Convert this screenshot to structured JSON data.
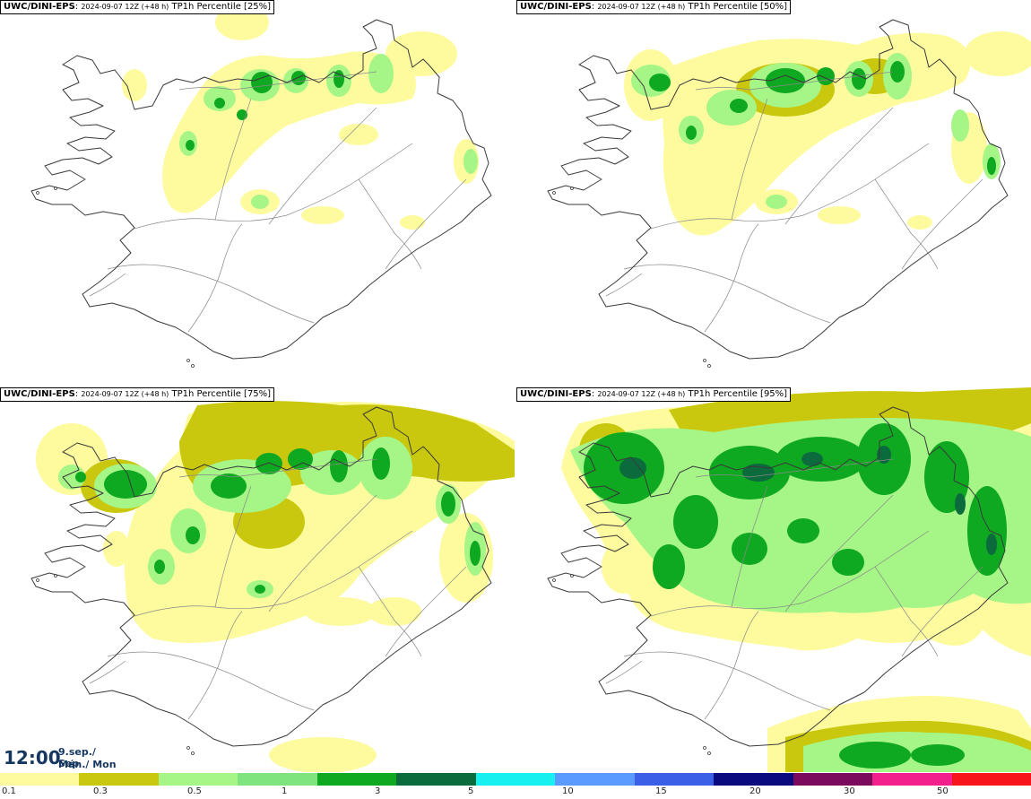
{
  "panels": [
    {
      "model": "UWC/DINI-EPS",
      "run": "2024-09-07 12Z (+48 h)",
      "variable": "TP1h Percentile",
      "percentile": "[25%]"
    },
    {
      "model": "UWC/DINI-EPS",
      "run": "2024-09-07 12Z (+48 h)",
      "variable": "TP1h Percentile",
      "percentile": "[50%]"
    },
    {
      "model": "UWC/DINI-EPS",
      "run": "2024-09-07 12Z (+48 h)",
      "variable": "TP1h Percentile",
      "percentile": "[75%]"
    },
    {
      "model": "UWC/DINI-EPS",
      "run": "2024-09-07 12Z (+48 h)",
      "variable": "TP1h Percentile",
      "percentile": "[95%]"
    }
  ],
  "valid": {
    "time": "12:00",
    "date_line1": "9.sep./ Sep",
    "date_line2": "Mán./ Mon"
  },
  "colorbar": {
    "colors": [
      "#fdfb9e",
      "#c9c80e",
      "#a6f587",
      "#7fe37e",
      "#0fa821",
      "#0b6b3d",
      "#17f0ee",
      "#5b9bff",
      "#3c5fe8",
      "#0a0a7e",
      "#7c0a5c",
      "#f2208c",
      "#f5151b"
    ],
    "ticks": [
      "0.1",
      "0.3",
      "0.5",
      "1",
      "3",
      "5",
      "10",
      "15",
      "20",
      "30",
      "50"
    ]
  },
  "map_colors": {
    "light": "#fdfb9e",
    "olive": "#c9c80e",
    "lgreen": "#a6f587",
    "green": "#0fa821",
    "dgreen": "#0b6b3d",
    "coast": "#3a3a3a"
  }
}
